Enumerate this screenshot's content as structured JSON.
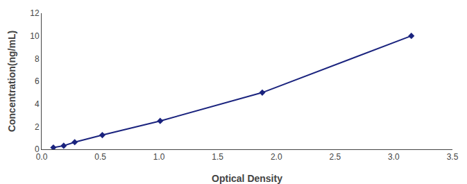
{
  "chart_data": {
    "type": "line",
    "xlabel": "Optical Density",
    "ylabel": "Concentration(ng/mL)",
    "x": [
      0.1,
      0.188,
      0.282,
      0.517,
      1.01,
      1.88,
      3.15
    ],
    "values": [
      0.156,
      0.312,
      0.625,
      1.25,
      2.5,
      5.0,
      10.0
    ],
    "color": "#1a237e",
    "marker": "diamond",
    "line_style": "solid",
    "xlim": [
      0,
      3.5
    ],
    "ylim": [
      0,
      12
    ],
    "xticks": [
      {
        "value": 0,
        "label": "0.0"
      },
      0.5,
      {
        "value": 1,
        "label": "1.0"
      },
      1.5,
      {
        "value": 2,
        "label": "2.0"
      },
      2.5,
      {
        "value": 3,
        "label": "3.0"
      },
      3.5
    ],
    "yticks": [
      0,
      2,
      4,
      6,
      8,
      10,
      12
    ],
    "grid": false
  }
}
